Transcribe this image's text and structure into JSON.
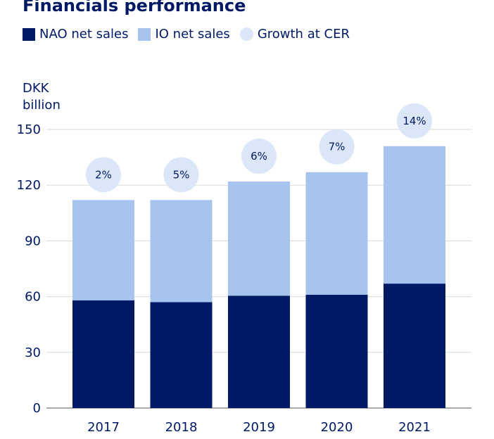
{
  "colors": {
    "nao": "#001965",
    "io": "#a7c4ee",
    "growth": "#dbe7f8",
    "grid": "#d9d9d9",
    "text": "#001965"
  },
  "chart_data": {
    "type": "bar",
    "stacked": true,
    "title": "Financials performance",
    "ylabel": [
      "DKK",
      "billion"
    ],
    "xlabel": "",
    "ylim": [
      0,
      150
    ],
    "yticks": [
      0,
      30,
      60,
      90,
      120,
      150
    ],
    "categories": [
      "2017",
      "2018",
      "2019",
      "2020",
      "2021"
    ],
    "series": [
      {
        "name": "NAO net sales",
        "values": [
          58,
          57,
          60.5,
          61,
          67
        ]
      },
      {
        "name": "IO net sales",
        "values": [
          54,
          55,
          61.5,
          66,
          74
        ]
      }
    ],
    "growth": {
      "name": "Growth at CER",
      "labels": [
        "2%",
        "5%",
        "6%",
        "7%",
        "14%"
      ]
    },
    "legend": {
      "placement": "top-left",
      "entries": [
        "NAO net sales",
        "IO net sales",
        "Growth at CER"
      ]
    }
  }
}
